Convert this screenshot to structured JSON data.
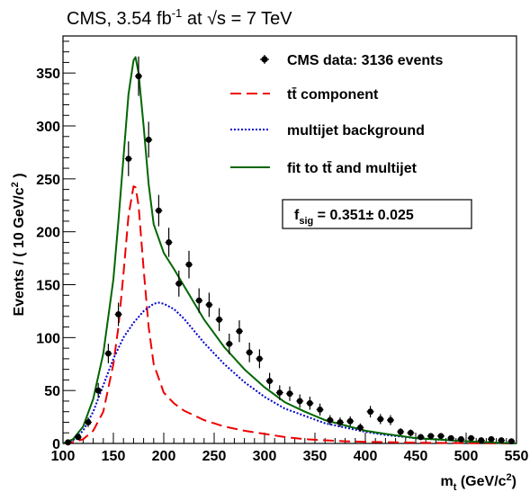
{
  "chart_data": {
    "type": "scatter",
    "title": "CMS, 3.54 fb⁻¹ at √s = 7 TeV",
    "xlabel": "m_t (GeV/c²)",
    "ylabel": "Events / ( 10 GeV/c² )",
    "xlim": [
      100,
      550
    ],
    "ylim": [
      0,
      385
    ],
    "xticks": [
      100,
      150,
      200,
      250,
      300,
      350,
      400,
      450,
      500,
      550
    ],
    "yticks": [
      0,
      50,
      100,
      150,
      200,
      250,
      300,
      350
    ],
    "grid": false,
    "legend_position": "top-right",
    "series": [
      {
        "name": "CMS data: 3136 events",
        "kind": "points_with_errors",
        "color": "#000000",
        "x": [
          105,
          115,
          125,
          135,
          145,
          155,
          165,
          175,
          185,
          195,
          205,
          215,
          225,
          235,
          245,
          255,
          265,
          275,
          285,
          295,
          305,
          315,
          325,
          335,
          345,
          355,
          365,
          375,
          385,
          395,
          405,
          415,
          425,
          435,
          445,
          455,
          465,
          475,
          485,
          495,
          505,
          515,
          525,
          535,
          545
        ],
        "y": [
          1,
          6,
          20,
          50,
          85,
          122,
          269,
          347,
          287,
          220,
          190,
          151,
          169,
          135,
          131,
          117,
          94,
          106,
          86,
          80,
          59,
          48,
          47,
          40,
          38,
          32,
          22,
          20,
          21,
          15,
          30,
          23,
          22,
          11,
          10,
          6,
          7,
          7,
          5,
          4,
          5,
          3,
          4,
          3,
          2
        ]
      },
      {
        "name": "tt̄ component",
        "kind": "curve",
        "style": "dashed",
        "color": "#ee0000",
        "x": [
          100,
          110,
          120,
          130,
          140,
          150,
          155,
          160,
          165,
          170,
          172,
          175,
          180,
          185,
          190,
          200,
          210,
          220,
          240,
          260,
          280,
          300,
          320,
          340,
          360,
          380,
          400,
          450,
          500,
          550
        ],
        "y": [
          0,
          1,
          4,
          12,
          30,
          75,
          110,
          160,
          215,
          243,
          242,
          225,
          165,
          110,
          75,
          48,
          38,
          31,
          22,
          16,
          12,
          9,
          6,
          4,
          3,
          2,
          1.5,
          0.7,
          0.3,
          0
        ]
      },
      {
        "name": "multijet background",
        "kind": "curve",
        "style": "dotted",
        "color": "#0000cc",
        "x": [
          100,
          110,
          120,
          130,
          140,
          150,
          160,
          170,
          180,
          190,
          195,
          200,
          210,
          220,
          240,
          260,
          280,
          300,
          320,
          340,
          360,
          380,
          400,
          420,
          450,
          500,
          550
        ],
        "y": [
          0,
          3,
          12,
          30,
          55,
          80,
          100,
          114,
          125,
          132,
          133,
          132,
          127,
          118,
          95,
          75,
          58,
          44,
          33,
          26,
          19,
          15,
          11,
          8,
          5,
          2,
          0
        ]
      },
      {
        "name": "fit to tt̄ and multijet",
        "kind": "curve",
        "style": "solid",
        "color": "#006600",
        "x": [
          100,
          110,
          120,
          130,
          140,
          150,
          155,
          160,
          165,
          170,
          172,
          175,
          180,
          185,
          190,
          200,
          210,
          220,
          240,
          260,
          280,
          300,
          320,
          340,
          360,
          380,
          400,
          420,
          450,
          500,
          550
        ],
        "y": [
          0,
          4,
          16,
          42,
          85,
          155,
          210,
          270,
          330,
          362,
          365,
          350,
          300,
          245,
          207,
          180,
          165,
          149,
          117,
          91,
          70,
          53,
          39,
          30,
          22,
          17,
          12,
          9,
          5,
          2,
          0
        ]
      }
    ],
    "annotation": "f_sig =  0.351± 0.025"
  },
  "legend": {
    "data": "CMS data: 3136 events",
    "ttbar": "tt̄ component",
    "multijet": "multijet background",
    "fit": "fit to tt̄ and multijet"
  },
  "colors": {
    "data": "#000000",
    "ttbar": "#ee0000",
    "multijet": "#0000cc",
    "fit": "#006600"
  }
}
